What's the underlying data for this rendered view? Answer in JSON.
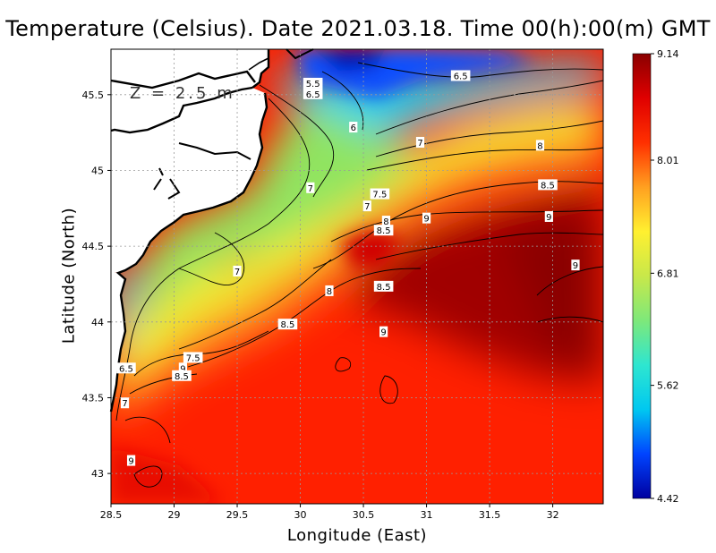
{
  "title": "Temperature (Celsius). Date 2021.03.18. Time 00(h):00(m)  GMT",
  "x_axis": {
    "label": "Longitude (East)",
    "range": [
      28.5,
      32.4
    ],
    "ticks": [
      "28.5",
      "29",
      "29.5",
      "30",
      "30.5",
      "31",
      "31.5",
      "32"
    ]
  },
  "y_axis": {
    "label": "Latitude (North)",
    "range": [
      42.8,
      45.8
    ],
    "ticks": [
      "43",
      "43.5",
      "44",
      "44.5",
      "45",
      "45.5"
    ]
  },
  "depth_label": "Z = 2.5 m",
  "colorbar": {
    "min": 4.42,
    "max": 9.14,
    "ticks": [
      "4.42",
      "5.62",
      "6.81",
      "8.01",
      "9.14"
    ],
    "colors": [
      "#0000a0",
      "#0044ff",
      "#00c8f0",
      "#2ee6d0",
      "#7ee87a",
      "#c8e84a",
      "#fff030",
      "#ffa020",
      "#ff3000",
      "#e00000",
      "#8a0000"
    ]
  },
  "grid": "dashed",
  "contour_labels": [
    {
      "text": "5.5",
      "lon": 30.1,
      "lat": 45.57
    },
    {
      "text": "6.5",
      "lon": 30.1,
      "lat": 45.5
    },
    {
      "text": "6.5",
      "lon": 31.27,
      "lat": 45.62
    },
    {
      "text": "6",
      "lon": 30.42,
      "lat": 45.28
    },
    {
      "text": "7",
      "lon": 30.95,
      "lat": 45.18
    },
    {
      "text": "8",
      "lon": 31.9,
      "lat": 45.16
    },
    {
      "text": "7",
      "lon": 30.08,
      "lat": 44.88
    },
    {
      "text": "7.5",
      "lon": 30.63,
      "lat": 44.84
    },
    {
      "text": "7",
      "lon": 30.53,
      "lat": 44.76
    },
    {
      "text": "8",
      "lon": 30.68,
      "lat": 44.66
    },
    {
      "text": "8.5",
      "lon": 30.66,
      "lat": 44.6
    },
    {
      "text": "9",
      "lon": 31.0,
      "lat": 44.68
    },
    {
      "text": "8.5",
      "lon": 31.96,
      "lat": 44.9
    },
    {
      "text": "9",
      "lon": 31.97,
      "lat": 44.69
    },
    {
      "text": "9",
      "lon": 32.18,
      "lat": 44.37
    },
    {
      "text": "7",
      "lon": 29.5,
      "lat": 44.33
    },
    {
      "text": "8",
      "lon": 30.23,
      "lat": 44.2
    },
    {
      "text": "8.5",
      "lon": 30.66,
      "lat": 44.23
    },
    {
      "text": "8.5",
      "lon": 29.9,
      "lat": 43.98
    },
    {
      "text": "9",
      "lon": 30.66,
      "lat": 43.93
    },
    {
      "text": "7.5",
      "lon": 29.15,
      "lat": 43.76
    },
    {
      "text": "9",
      "lon": 29.07,
      "lat": 43.69
    },
    {
      "text": "8.5",
      "lon": 29.06,
      "lat": 43.64
    },
    {
      "text": "6.5",
      "lon": 28.62,
      "lat": 43.69
    },
    {
      "text": "7",
      "lon": 28.61,
      "lat": 43.46
    },
    {
      "text": "9",
      "lon": 28.66,
      "lat": 43.08
    }
  ]
}
